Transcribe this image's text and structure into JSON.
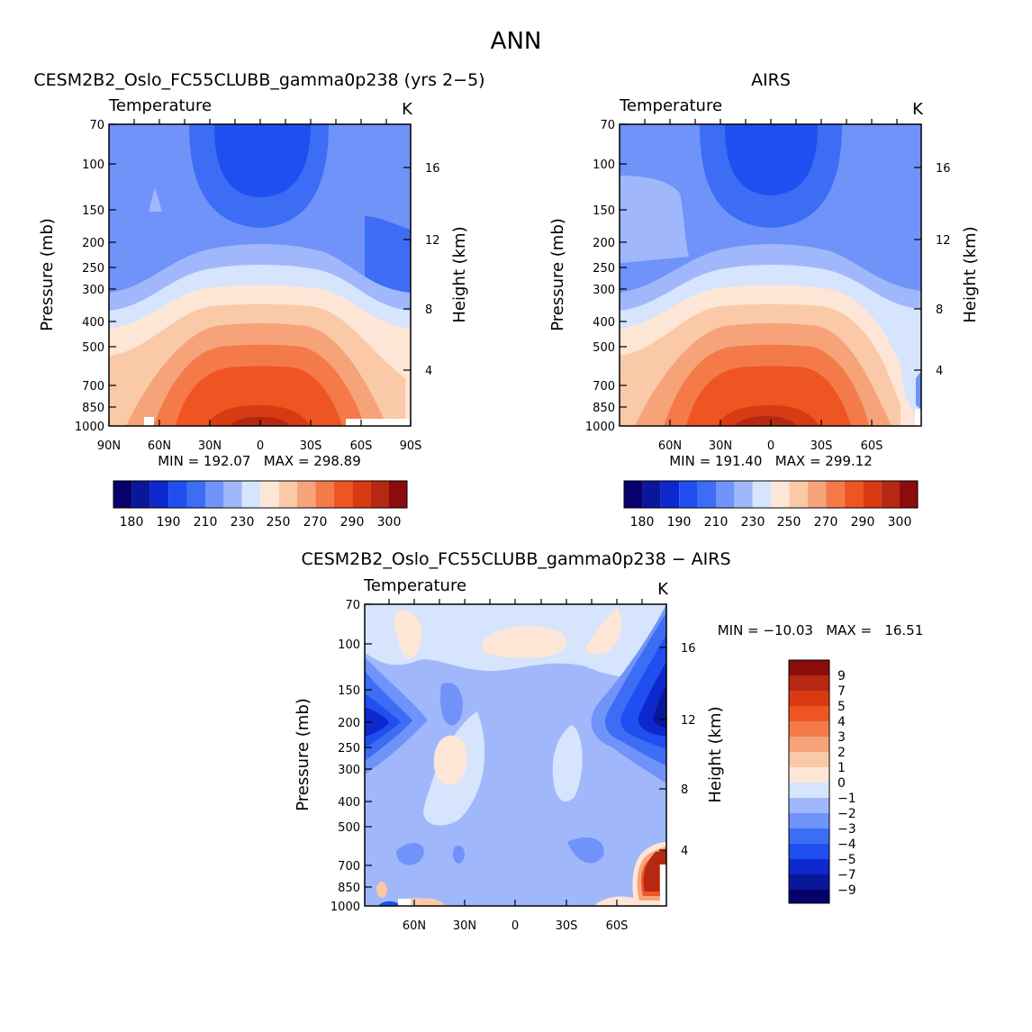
{
  "figure_title": "ANN",
  "colors": {
    "abs_levels": [
      "#08006b",
      "#0a1799",
      "#0d28cc",
      "#1f4ff0",
      "#3d6cf5",
      "#6f93f8",
      "#a0b8fb",
      "#d6e4fd",
      "#fde6d6",
      "#fac9a8",
      "#f6a37a",
      "#f47a4a",
      "#ef5522",
      "#d93a12",
      "#b52812",
      "#8a0c0c"
    ],
    "diff_levels": [
      "#08006b",
      "#0a1799",
      "#0d28cc",
      "#1f4ff0",
      "#3d6cf5",
      "#6f93f8",
      "#a0b8fb",
      "#d6e4fd",
      "#fde6d6",
      "#fac9a8",
      "#f6a37a",
      "#f47a4a",
      "#ef5522",
      "#d93a12",
      "#b52812",
      "#8a0c0c"
    ]
  },
  "chart_data": [
    {
      "type": "contour",
      "title": "CESM2B2_Oslo_FC55CLUBB_gamma0p238 (yrs 2−5)",
      "variable": "Temperature",
      "units": "K",
      "xlabel": "",
      "ylabel": "Pressure (mb)",
      "ylabel_right": "Height (km)",
      "x_ticks": [
        "90N",
        "60N",
        "30N",
        "0",
        "30S",
        "60S",
        "90S"
      ],
      "y_ticks": [
        "70",
        "100",
        "150",
        "200",
        "250",
        "300",
        "400",
        "500",
        "700",
        "850",
        "1000"
      ],
      "y_right_ticks": [
        "16",
        "12",
        "8",
        "4"
      ],
      "min_max": "MIN = 192.07   MAX = 298.89",
      "colorbar_labels": [
        "180",
        "190",
        "210",
        "230",
        "250",
        "270",
        "290",
        "300"
      ]
    },
    {
      "type": "contour",
      "title": "AIRS",
      "variable": "Temperature",
      "units": "K",
      "xlabel": "",
      "ylabel": "Pressure (mb)",
      "ylabel_right": "Height (km)",
      "x_ticks": [
        "60N",
        "30N",
        "0",
        "30S",
        "60S"
      ],
      "y_ticks": [
        "70",
        "100",
        "150",
        "200",
        "250",
        "300",
        "400",
        "500",
        "700",
        "850",
        "1000"
      ],
      "y_right_ticks": [
        "16",
        "12",
        "8",
        "4"
      ],
      "min_max": "MIN = 191.40   MAX = 299.12",
      "colorbar_labels": [
        "180",
        "190",
        "210",
        "230",
        "250",
        "270",
        "290",
        "300"
      ]
    },
    {
      "type": "contour",
      "title": "CESM2B2_Oslo_FC55CLUBB_gamma0p238 − AIRS",
      "variable": "Temperature",
      "units": "K",
      "xlabel": "",
      "ylabel": "Pressure (mb)",
      "ylabel_right": "Height (km)",
      "x_ticks": [
        "60N",
        "30N",
        "0",
        "30S",
        "60S"
      ],
      "y_ticks": [
        "70",
        "100",
        "150",
        "200",
        "250",
        "300",
        "400",
        "500",
        "700",
        "850",
        "1000"
      ],
      "y_right_ticks": [
        "16",
        "12",
        "8",
        "4"
      ],
      "min_max": "MIN = −10.03   MAX =   16.51",
      "colorbar_labels": [
        "9",
        "7",
        "5",
        "4",
        "3",
        "2",
        "1",
        "0",
        "−1",
        "−2",
        "−3",
        "−4",
        "−5",
        "−7",
        "−9"
      ]
    }
  ]
}
